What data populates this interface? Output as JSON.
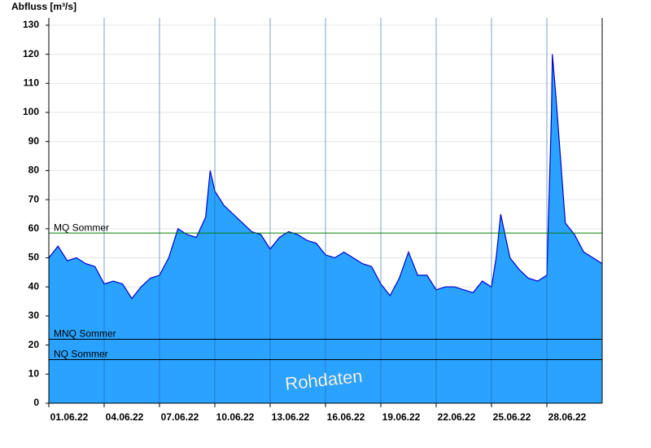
{
  "chart_data": {
    "type": "area",
    "y_label": "Abfluss [m³/s]",
    "annotation": "Rohdaten",
    "x": [
      1,
      1.5,
      2,
      2.5,
      3,
      3.5,
      4,
      4.5,
      5,
      5.5,
      6,
      6.5,
      7,
      7.5,
      8,
      8.5,
      9,
      9.5,
      9.75,
      10,
      10.5,
      11,
      11.5,
      12,
      12.5,
      13,
      13.5,
      14,
      14.5,
      15,
      15.5,
      16,
      16.5,
      17,
      17.5,
      18,
      18.5,
      19,
      19.5,
      20,
      20.5,
      21,
      21.5,
      22,
      22.5,
      23,
      23.5,
      24,
      24.5,
      25,
      25.25,
      25.5,
      26,
      26.5,
      27,
      27.5,
      28,
      28.25,
      28.3,
      28.5,
      29,
      29.5,
      30,
      30.5,
      31
    ],
    "values": [
      50,
      54,
      49,
      50,
      48,
      47,
      41,
      42,
      41,
      36,
      40,
      43,
      44,
      50,
      60,
      58,
      57,
      64,
      80,
      73,
      68,
      65,
      62,
      59,
      58,
      53,
      57,
      59,
      58,
      56,
      55,
      51,
      50,
      52,
      50,
      48,
      47,
      41,
      37,
      43,
      52,
      44,
      44,
      39,
      40,
      40,
      39,
      38,
      42,
      40,
      50,
      65,
      50,
      46,
      43,
      42,
      44,
      100,
      120,
      105,
      62,
      58,
      52,
      50,
      48
    ],
    "color": "#29a3ff",
    "line_color": "#0000cc",
    "xlim": [
      1,
      31
    ],
    "xticks": [
      {
        "value": 1,
        "label": "01.06.22"
      },
      {
        "value": 4,
        "label": "04.06.22"
      },
      {
        "value": 7,
        "label": "07.06.22"
      },
      {
        "value": 10,
        "label": "10.06.22"
      },
      {
        "value": 13,
        "label": "13.06.22"
      },
      {
        "value": 16,
        "label": "16.06.22"
      },
      {
        "value": 19,
        "label": "19.06.22"
      },
      {
        "value": 22,
        "label": "22.06.22"
      },
      {
        "value": 25,
        "label": "25.06.22"
      },
      {
        "value": 28,
        "label": "28.06.22"
      }
    ],
    "ylim": [
      0,
      132.5
    ],
    "yticks": [
      0,
      10,
      20,
      30,
      40,
      50,
      60,
      70,
      80,
      90,
      100,
      110,
      120,
      130
    ],
    "grid": true,
    "reference_lines": [
      {
        "label": "MQ Sommer",
        "value": 58.5,
        "color": "#008000"
      },
      {
        "label": "MNQ Sommer",
        "value": 22,
        "color": "#000000"
      },
      {
        "label": "NQ Sommer",
        "value": 15,
        "color": "#000000"
      }
    ]
  }
}
